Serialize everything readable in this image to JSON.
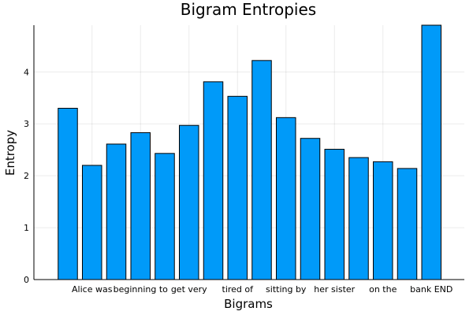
{
  "chart_data": {
    "type": "bar",
    "title": "Bigram Entropies",
    "xlabel": "Bigrams",
    "ylabel": "Entropy",
    "ylim": [
      0,
      4.9
    ],
    "yticks": [
      0,
      1,
      2,
      3,
      4
    ],
    "grid": true,
    "legend": false,
    "bar_color": "#009af9",
    "values": [
      3.3,
      2.2,
      2.61,
      2.83,
      2.43,
      2.97,
      3.81,
      3.53,
      4.22,
      3.12,
      2.72,
      2.51,
      2.35,
      2.27,
      2.14,
      4.9
    ],
    "x_tick_labels": [
      {
        "bar_index": 1,
        "text": "Alice was"
      },
      {
        "bar_index": 3,
        "text": "beginning to"
      },
      {
        "bar_index": 5,
        "text": "get very"
      },
      {
        "bar_index": 7,
        "text": "tired of"
      },
      {
        "bar_index": 9,
        "text": "sitting by"
      },
      {
        "bar_index": 11,
        "text": "her sister"
      },
      {
        "bar_index": 13,
        "text": "on the"
      },
      {
        "bar_index": 15,
        "text": "bank END"
      }
    ]
  }
}
